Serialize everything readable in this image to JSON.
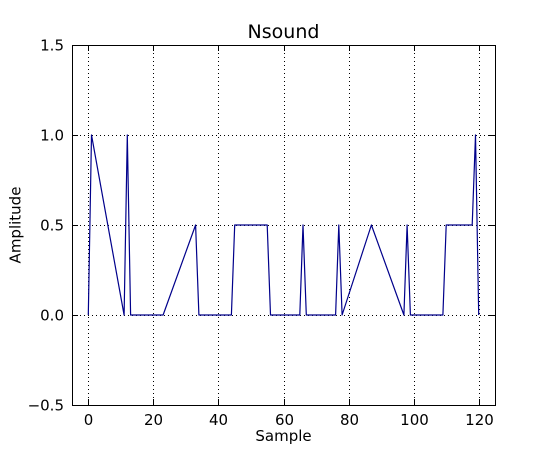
{
  "chart_data": {
    "type": "line",
    "title": "Nsound",
    "xlabel": "Sample",
    "ylabel": "Amplitude",
    "xlim": [
      -5,
      125
    ],
    "ylim": [
      -0.5,
      1.5
    ],
    "xticks": [
      0,
      20,
      40,
      60,
      80,
      100,
      120
    ],
    "yticks": [
      -0.5,
      0.0,
      0.5,
      1.0,
      1.5
    ],
    "xtick_labels": [
      "0",
      "20",
      "40",
      "60",
      "80",
      "100",
      "120"
    ],
    "ytick_labels": [
      "−0.5",
      "0.0",
      "0.5",
      "1.0",
      "1.5"
    ],
    "grid": true,
    "series": [
      {
        "color": "#00008b",
        "x": [
          0,
          1,
          11,
          12,
          13,
          23,
          33,
          34,
          44,
          45,
          55,
          56,
          65,
          66,
          67,
          76,
          77,
          78,
          87,
          97,
          98,
          99,
          109,
          110,
          118,
          119,
          120
        ],
        "y": [
          0,
          1,
          0,
          1,
          0,
          0,
          0.5,
          0,
          0,
          0.5,
          0.5,
          0,
          0,
          0.5,
          0,
          0,
          0.5,
          0,
          0.5,
          0,
          0.5,
          0,
          0,
          0.5,
          0.5,
          1,
          0
        ]
      }
    ]
  }
}
